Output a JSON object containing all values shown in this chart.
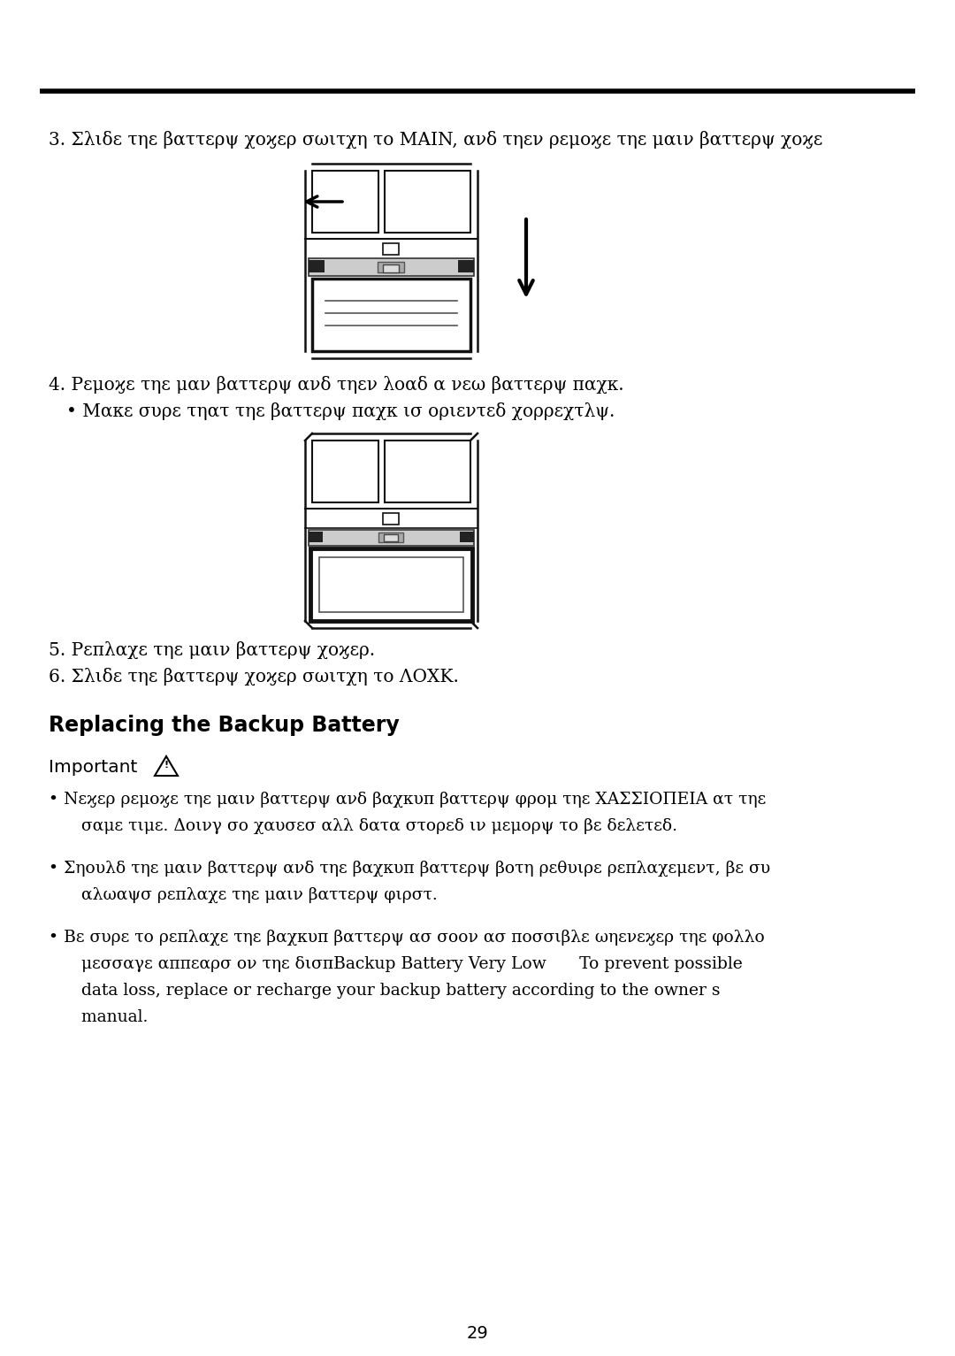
{
  "bg_color": "#ffffff",
  "text_color": "#000000",
  "page_number": "29",
  "line3_text": "3. Σλιδε τηε βαττερψ χοϗερ σωιτχη το MAIN, ανδ τηεν ρεμοϗε τηε μαιν βαττερψ χοϗε",
  "line4_text": "4. Ρεμοϗε τηε μαν βαττερψ ανδ τηεν λοαδ α νεω βαττερψ παχκ.",
  "bullet4_text": "• Μακε συρε τηατ τηε βαττερψ παχκ ισ οριεντεδ χορρεχτλψ.",
  "line5_text": "5. Ρεπλαχε τηε μαιν βαττερψ χοϗερ.",
  "line6_text": "6. Σλιδε τηε βαττερψ χοϗερ σωιτχη το ΛΟΧΚ.",
  "section_title": "Replacing the Backup Battery",
  "important_label": "Important",
  "bullet1_line1": "• Νεϗερ ρεμοϗε τηε μαιν βαττερψ ανδ βαχκυπ βαττερψ φρομ τηε ΧΑΣΣΙΟΠΕΙΑ ατ τηε",
  "bullet1_line2": "  σαμε τιμε. Δοινγ σο χαυσεσ αλλ δατα στορεδ ιν μεμορψ το βε δελετεδ.",
  "bullet2_line1": "• Σηουλδ τηε μαιν βαττερψ ανδ τηε βαχκυπ βαττερψ βοτη ρεθυιρε ρεπλαχεμεντ, βε συ",
  "bullet2_line2": "  αλωαψσ ρεπλαχε τηε μαιν βαττερψ φιρστ.",
  "bullet3_line1": "• Βε συρε το ρεπλαχε τηε βαχκυπ βαττερψ ασ σοον ασ ποσσιβλε ωηενεϗερ τηε φολλο",
  "bullet3_line2": "  μεσσαγε αππεαρσ ον τηε δισπBackup Battery Very Low  To prevent possible",
  "bullet3_line3": "  data loss, replace or recharge your backup battery according to the owner s",
  "bullet3_line4": "  manual."
}
